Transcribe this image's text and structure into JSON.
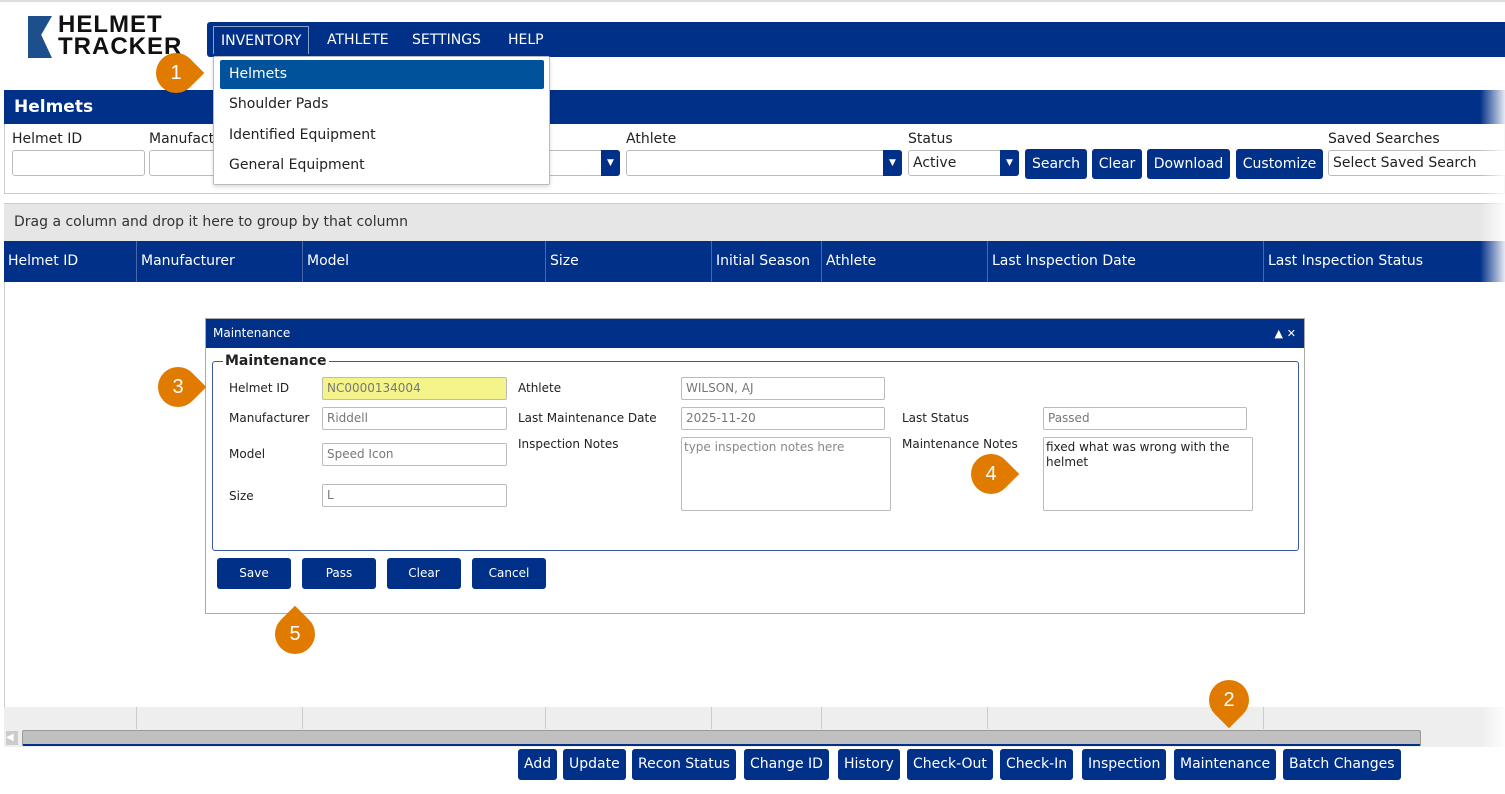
{
  "logo": {
    "line1": "HELMET",
    "line2": "TRACKER"
  },
  "nav": {
    "items": [
      {
        "label": "INVENTORY"
      },
      {
        "label": "ATHLETE"
      },
      {
        "label": "SETTINGS"
      },
      {
        "label": "HELP"
      }
    ]
  },
  "inventory_menu": {
    "items": [
      {
        "label": "Helmets",
        "selected": true
      },
      {
        "label": "Shoulder Pads"
      },
      {
        "label": "Identified Equipment"
      },
      {
        "label": "General Equipment"
      }
    ]
  },
  "panel": {
    "title": "Helmets"
  },
  "filters": {
    "helmet_id_label": "Helmet ID",
    "helmet_id_value": "",
    "manufacturer_label": "Manufact",
    "athlete_label": "Athlete",
    "athlete_value": "",
    "status_label": "Status",
    "status_value": "Active",
    "saved_label": "Saved Searches",
    "saved_value": "Select Saved Search",
    "search": "Search",
    "clear": "Clear",
    "download": "Download",
    "customize": "Customize"
  },
  "grid": {
    "group_hint": "Drag a column and drop it here to group by that column",
    "columns": [
      "Helmet ID",
      "Manufacturer",
      "Model",
      "Size",
      "Initial Season",
      "Athlete",
      "Last Inspection Date",
      "Last Inspection Status"
    ]
  },
  "actions": [
    "Add",
    "Update",
    "Recon Status",
    "Change ID",
    "History",
    "Check-Out",
    "Check-In",
    "Inspection",
    "Maintenance",
    "Batch Changes"
  ],
  "dialog": {
    "title": "Maintenance",
    "legend": "Maintenance",
    "fields": {
      "helmet_id": {
        "label": "Helmet ID",
        "value": "NC0000134004"
      },
      "manufacturer": {
        "label": "Manufacturer",
        "value": "Riddell"
      },
      "model": {
        "label": "Model",
        "value": "Speed Icon"
      },
      "size": {
        "label": "Size",
        "value": "L"
      },
      "athlete": {
        "label": "Athlete",
        "value": "WILSON, AJ"
      },
      "last_maintenance_date": {
        "label": "Last Maintenance Date",
        "value": "2025-11-20"
      },
      "inspection_notes": {
        "label": "Inspection Notes",
        "placeholder": "type inspection notes here"
      },
      "last_status": {
        "label": "Last Status",
        "value": "Passed"
      },
      "maintenance_notes": {
        "label": "Maintenance Notes",
        "value": "fixed what was wrong with the helmet"
      }
    },
    "buttons": {
      "save": "Save",
      "pass": "Pass",
      "clear": "Clear",
      "cancel": "Cancel"
    }
  },
  "callouts": [
    "1",
    "2",
    "3",
    "4",
    "5"
  ],
  "colors": {
    "navy": "#003087",
    "menu_highlight": "#00529b",
    "callout": "#e07b00",
    "highlight_field": "#f4f48a"
  }
}
